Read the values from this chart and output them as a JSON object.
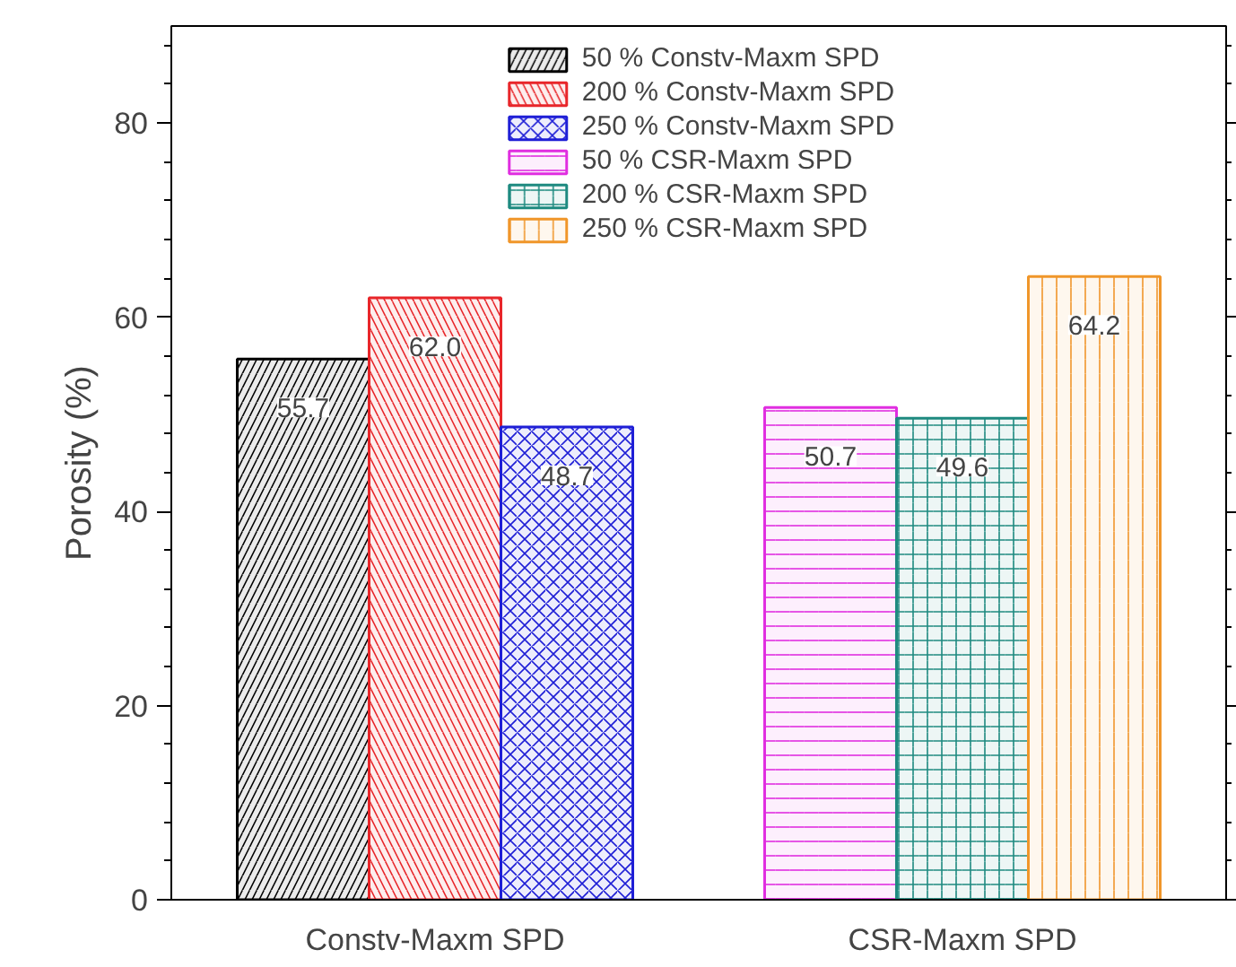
{
  "chart_data": {
    "type": "bar",
    "ylabel": "Porosity (%)",
    "categories": [
      "Constv-Maxm SPD",
      "CSR-Maxm SPD"
    ],
    "series": [
      {
        "name": "50 % Constv-Maxm SPD",
        "color": "#000000",
        "values": [
          55.7,
          null
        ]
      },
      {
        "name": "200 % Constv-Maxm SPD",
        "color": "#e8262a",
        "values": [
          62.0,
          null
        ],
        "value_labels": [
          "62.0",
          null
        ]
      },
      {
        "name": "250 % Constv-Maxm SPD",
        "color": "#1f1fd6",
        "values": [
          48.7,
          null
        ]
      },
      {
        "name": "50 % CSR-Maxm SPD",
        "color": "#e02ee0",
        "values": [
          null,
          50.7
        ]
      },
      {
        "name": "200 % CSR-Maxm SPD",
        "color": "#1e8a80",
        "values": [
          null,
          49.6
        ]
      },
      {
        "name": "250 % CSR-Maxm SPD",
        "color": "#f0962a",
        "values": [
          null,
          64.2
        ]
      }
    ],
    "ylim": [
      0,
      90
    ],
    "yticks": [
      0,
      20,
      40,
      60,
      80
    ],
    "grid": false,
    "legend": "top",
    "data_labels": true
  }
}
